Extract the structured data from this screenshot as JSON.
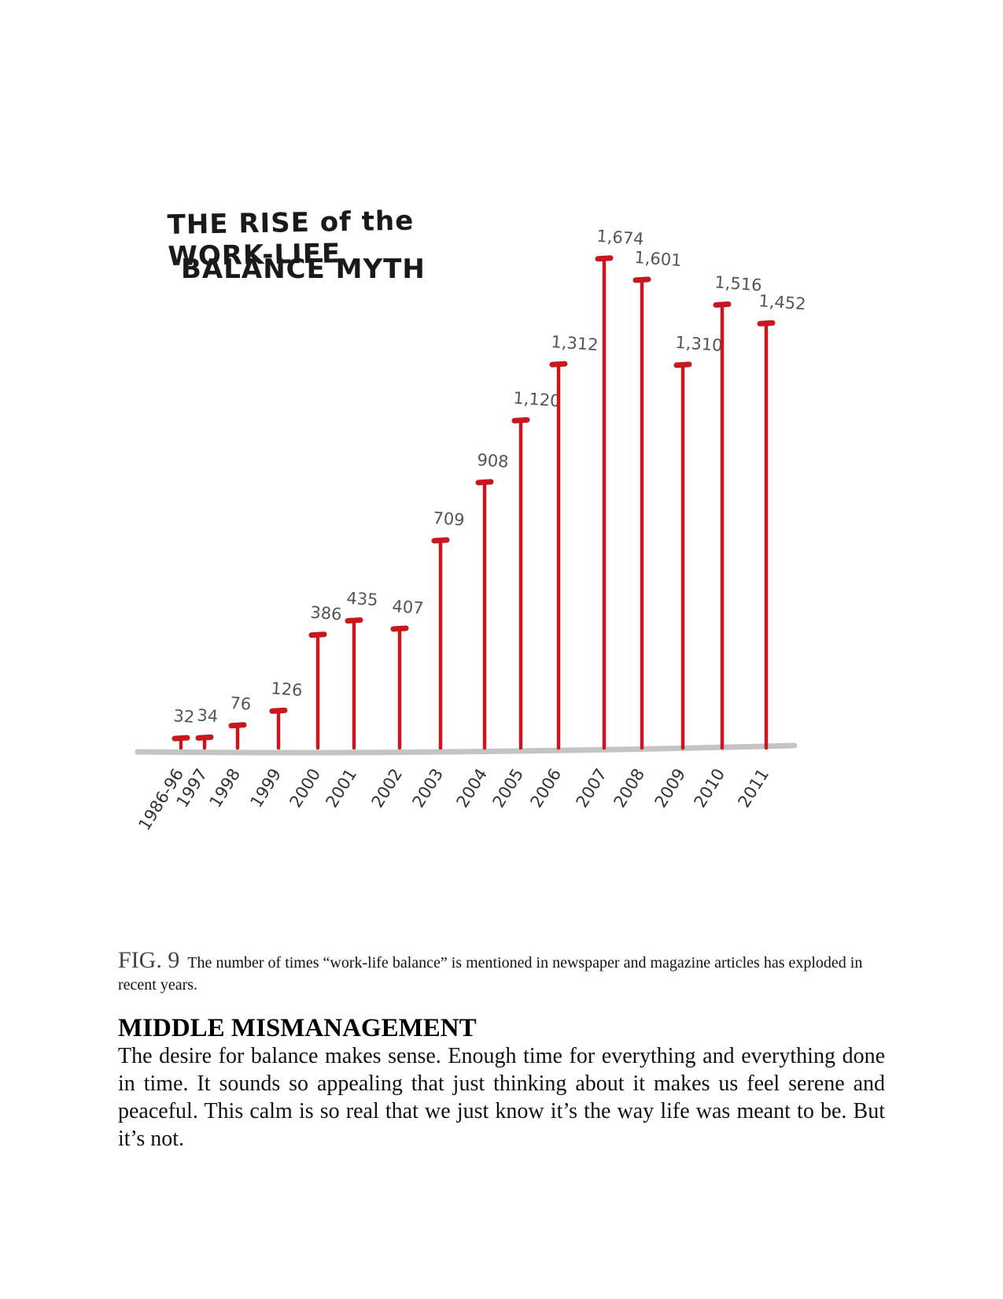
{
  "chart_data": {
    "type": "bar",
    "title_lines": [
      "THE RISE of the WORK-LIFE",
      "BALANCE MYTH"
    ],
    "categories": [
      "1986-96",
      "1997",
      "1998",
      "1999",
      "2000",
      "2001",
      "2002",
      "2003",
      "2004",
      "2005",
      "2006",
      "2007",
      "2008",
      "2009",
      "2010",
      "2011"
    ],
    "values": [
      32,
      34,
      76,
      126,
      386,
      435,
      407,
      709,
      908,
      1120,
      1312,
      1674,
      1601,
      1310,
      1516,
      1452
    ],
    "value_labels": [
      "32",
      "34",
      "76",
      "126",
      "386",
      "435",
      "407",
      "709",
      "908",
      "1,120",
      "1,312",
      "1,674",
      "1,601",
      "1,310",
      "1,516",
      "1,452"
    ],
    "ylim": [
      0,
      1800
    ],
    "grid": false,
    "bar_color": "#c8171e",
    "axis_color": "#c4c4c4"
  },
  "caption": {
    "fig_label": "FIG. 9",
    "text": "The number of times “work-life balance” is mentioned in newspaper and magazine articles has exploded in recent years."
  },
  "section": {
    "heading": "MIDDLE MISMANAGEMENT",
    "body": "The desire for balance makes sense. Enough time for everything and everything done in time. It sounds so appealing that just thinking about it makes us feel serene and peaceful. This calm is so real that we just know it’s the way life was meant to be. But it’s not."
  }
}
